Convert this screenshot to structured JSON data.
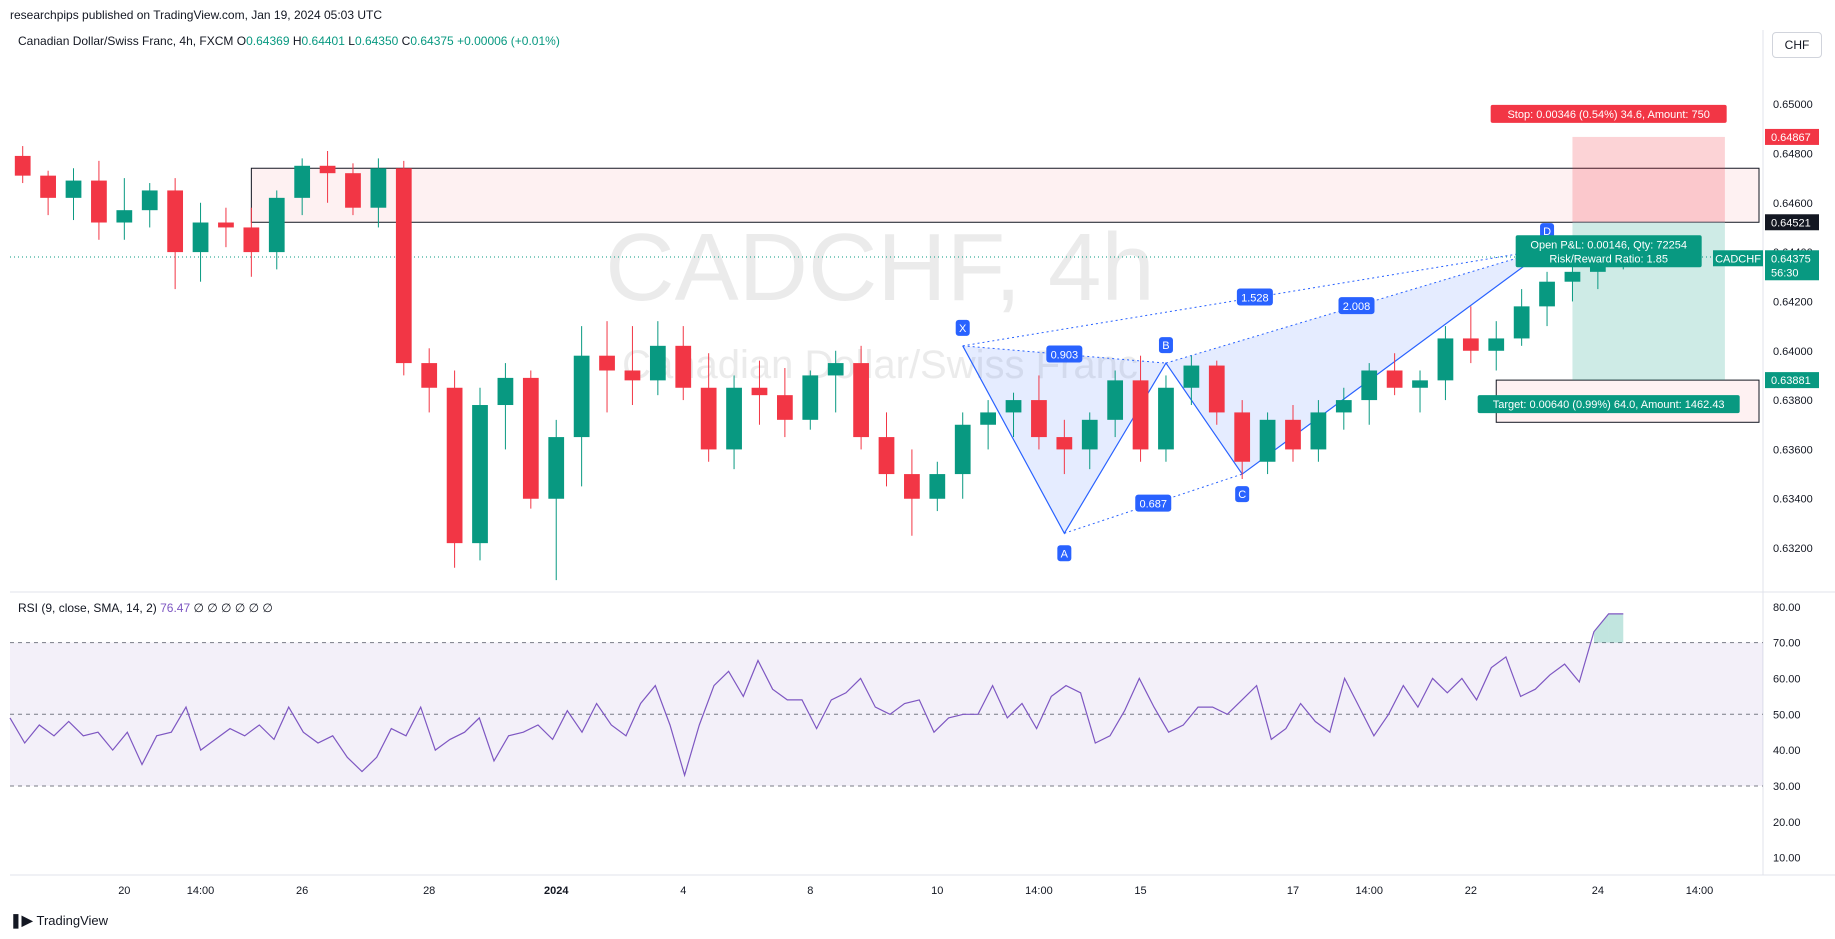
{
  "header": {
    "published": "researchpips published on TradingView.com, Jan 19, 2024 05:03 UTC",
    "symbol": "Canadian Dollar/Swiss Franc, 4h, FXCM",
    "ohlc": {
      "open_label": "O",
      "open": "0.64369",
      "high_label": "H",
      "high": "0.64401",
      "low_label": "L",
      "low": "0.64350",
      "close_label": "C",
      "close": "0.64375",
      "change": "+0.00006 (+0.01%)"
    },
    "currency_button": "CHF"
  },
  "watermark": {
    "main": "CADCHF, 4h",
    "sub": "Canadian Dollar/Swiss Franc"
  },
  "footer": {
    "logo_text": "TradingView"
  },
  "colors": {
    "up": "#089981",
    "down": "#f23645",
    "rsi": "#7e57c2",
    "pattern": "#2962ff"
  },
  "chart_data": {
    "type": "candlestick",
    "price_axis": {
      "ylim": [
        0.6303,
        0.6526
      ],
      "ticks": [
        "0.63200",
        "0.63400",
        "0.63600",
        "0.63800",
        "0.64000",
        "0.64200",
        "0.64400",
        "0.64600",
        "0.64800",
        "0.65000"
      ]
    },
    "price_labels": [
      {
        "name": "stop-level",
        "value": "0.64867",
        "color": "#f23645"
      },
      {
        "name": "zone-top",
        "value": "0.64521",
        "color": "#131722"
      },
      {
        "name": "current",
        "value": "0.64375",
        "symbol": "CADCHF",
        "countdown": "56:30",
        "color": "#089981"
      },
      {
        "name": "target-level",
        "value": "0.63881",
        "color": "#089981"
      }
    ],
    "x_axis": {
      "ticks": [
        {
          "label": "20",
          "i": 4
        },
        {
          "label": "14:00",
          "i": 7
        },
        {
          "label": "26",
          "i": 11
        },
        {
          "label": "28",
          "i": 16
        },
        {
          "label": "2024",
          "i": 21,
          "bold": true
        },
        {
          "label": "4",
          "i": 26
        },
        {
          "label": "8",
          "i": 31
        },
        {
          "label": "10",
          "i": 36
        },
        {
          "label": "14:00",
          "i": 40
        },
        {
          "label": "15",
          "i": 44
        },
        {
          "label": "17",
          "i": 50
        },
        {
          "label": "14:00",
          "i": 53
        },
        {
          "label": "22",
          "i": 57
        },
        {
          "label": "24",
          "i": 62
        },
        {
          "label": "14:00",
          "i": 66
        }
      ],
      "i_range": [
        -0.5,
        68.5
      ]
    },
    "candles": [
      [
        0.6479,
        0.6483,
        0.6468,
        0.6471
      ],
      [
        0.6471,
        0.6473,
        0.6455,
        0.6462
      ],
      [
        0.6462,
        0.6474,
        0.6453,
        0.6469
      ],
      [
        0.6469,
        0.6477,
        0.6445,
        0.6452
      ],
      [
        0.6452,
        0.647,
        0.6445,
        0.6457
      ],
      [
        0.6457,
        0.6468,
        0.645,
        0.6465
      ],
      [
        0.6465,
        0.647,
        0.6425,
        0.644
      ],
      [
        0.644,
        0.646,
        0.6428,
        0.6452
      ],
      [
        0.6452,
        0.6458,
        0.6442,
        0.645
      ],
      [
        0.645,
        0.6458,
        0.643,
        0.644
      ],
      [
        0.644,
        0.6465,
        0.6433,
        0.6462
      ],
      [
        0.6462,
        0.6478,
        0.6455,
        0.6475
      ],
      [
        0.6475,
        0.6481,
        0.646,
        0.6472
      ],
      [
        0.6472,
        0.6476,
        0.6455,
        0.6458
      ],
      [
        0.6458,
        0.6478,
        0.645,
        0.6474
      ],
      [
        0.6474,
        0.6477,
        0.639,
        0.6395
      ],
      [
        0.6395,
        0.6401,
        0.6375,
        0.6385
      ],
      [
        0.6385,
        0.6392,
        0.6312,
        0.6322
      ],
      [
        0.6322,
        0.6385,
        0.6315,
        0.6378
      ],
      [
        0.6378,
        0.6395,
        0.636,
        0.6389
      ],
      [
        0.6389,
        0.6392,
        0.6336,
        0.634
      ],
      [
        0.634,
        0.6372,
        0.6307,
        0.6365
      ],
      [
        0.6365,
        0.641,
        0.6345,
        0.6398
      ],
      [
        0.6398,
        0.6412,
        0.6375,
        0.6392
      ],
      [
        0.6392,
        0.641,
        0.6378,
        0.6388
      ],
      [
        0.6388,
        0.6412,
        0.6382,
        0.6402
      ],
      [
        0.6402,
        0.641,
        0.638,
        0.6385
      ],
      [
        0.6385,
        0.6399,
        0.6355,
        0.636
      ],
      [
        0.636,
        0.639,
        0.6352,
        0.6385
      ],
      [
        0.6385,
        0.6396,
        0.637,
        0.6382
      ],
      [
        0.6382,
        0.6393,
        0.6365,
        0.6372
      ],
      [
        0.6372,
        0.6392,
        0.6368,
        0.639
      ],
      [
        0.639,
        0.64,
        0.6375,
        0.6395
      ],
      [
        0.6395,
        0.6402,
        0.636,
        0.6365
      ],
      [
        0.6365,
        0.6375,
        0.6345,
        0.635
      ],
      [
        0.635,
        0.636,
        0.6325,
        0.634
      ],
      [
        0.634,
        0.6355,
        0.6335,
        0.635
      ],
      [
        0.635,
        0.6375,
        0.634,
        0.637
      ],
      [
        0.637,
        0.638,
        0.636,
        0.6375
      ],
      [
        0.6375,
        0.6383,
        0.6365,
        0.638
      ],
      [
        0.638,
        0.639,
        0.636,
        0.6365
      ],
      [
        0.6365,
        0.6372,
        0.635,
        0.636
      ],
      [
        0.636,
        0.6375,
        0.6352,
        0.6372
      ],
      [
        0.6372,
        0.6392,
        0.6365,
        0.6388
      ],
      [
        0.6388,
        0.6398,
        0.6355,
        0.636
      ],
      [
        0.636,
        0.639,
        0.6355,
        0.6385
      ],
      [
        0.6385,
        0.6398,
        0.6378,
        0.6394
      ],
      [
        0.6394,
        0.6396,
        0.637,
        0.6375
      ],
      [
        0.6375,
        0.638,
        0.6348,
        0.6355
      ],
      [
        0.6355,
        0.6375,
        0.635,
        0.6372
      ],
      [
        0.6372,
        0.6378,
        0.6355,
        0.636
      ],
      [
        0.636,
        0.638,
        0.6355,
        0.6375
      ],
      [
        0.6375,
        0.6385,
        0.6368,
        0.638
      ],
      [
        0.638,
        0.6395,
        0.637,
        0.6392
      ],
      [
        0.6392,
        0.6399,
        0.6382,
        0.6385
      ],
      [
        0.6385,
        0.6392,
        0.6375,
        0.6388
      ],
      [
        0.6388,
        0.641,
        0.638,
        0.6405
      ],
      [
        0.6405,
        0.6418,
        0.6395,
        0.64
      ],
      [
        0.64,
        0.6412,
        0.6392,
        0.6405
      ],
      [
        0.6405,
        0.6425,
        0.6402,
        0.6418
      ],
      [
        0.6418,
        0.6432,
        0.641,
        0.6428
      ],
      [
        0.6428,
        0.6438,
        0.642,
        0.6432
      ],
      [
        0.6432,
        0.644,
        0.6425,
        0.6437
      ],
      [
        0.6437,
        0.6441,
        0.6433,
        0.6438
      ]
    ],
    "harmonic_pattern": {
      "points": [
        {
          "label": "X",
          "i": 37,
          "price": 0.6402
        },
        {
          "label": "A",
          "i": 41,
          "price": 0.6326
        },
        {
          "label": "B",
          "i": 45,
          "price": 0.6395
        },
        {
          "label": "C",
          "i": 48,
          "price": 0.635
        },
        {
          "label": "D",
          "i": 60,
          "price": 0.64412
        }
      ],
      "ratios": [
        {
          "label": "0.903",
          "between": "X-B"
        },
        {
          "label": "0.687",
          "between": "A-C"
        },
        {
          "label": "2.008",
          "between": "B-D"
        },
        {
          "label": "1.528",
          "between": "X-D"
        }
      ]
    },
    "supply_zone": {
      "top": 0.6474,
      "bottom": 0.64521,
      "i_from": 9,
      "i_to": 68.5
    },
    "demand_zone": {
      "top": 0.63881,
      "bottom": 0.6371,
      "i_from": 58,
      "i_to": 68.5
    },
    "position": {
      "entry": 0.64521,
      "stop": 0.64867,
      "target": 0.63881,
      "i_from": 61,
      "i_to": 67,
      "stop_label": "Stop: 0.00346 (0.54%) 34.6, Amount: 750",
      "pnl_label": "Open P&L: 0.00146, Qty: 72254",
      "rr_label": "Risk/Reward Ratio: 1.85",
      "target_label": "Target: 0.00640 (0.99%) 64.0, Amount: 1462.43"
    },
    "rsi": {
      "legend_name": "RSI",
      "legend_params": "(9, close, SMA, 14, 2)",
      "legend_value": "76.47",
      "legend_extra": "∅ ∅ ∅ ∅ ∅ ∅",
      "ylim": [
        6,
        83
      ],
      "ticks": [
        "10.00",
        "20.00",
        "30.00",
        "40.00",
        "50.00",
        "60.00",
        "70.00",
        "80.00"
      ],
      "levels": [
        70,
        50,
        30
      ],
      "values": [
        49,
        42,
        47,
        44,
        48,
        44,
        45,
        40,
        45,
        36,
        44,
        45,
        52,
        40,
        43,
        46,
        44,
        47,
        43,
        52,
        45,
        42,
        44,
        38,
        34,
        38,
        46,
        44,
        52,
        40,
        43,
        45,
        49,
        37,
        44,
        45,
        47,
        43,
        51,
        45,
        53,
        47,
        44,
        53,
        58,
        47,
        33,
        47,
        58,
        62,
        55,
        65,
        57,
        54,
        54,
        46,
        54,
        56,
        60,
        52,
        50,
        53,
        54,
        45,
        49,
        50,
        50,
        58,
        49,
        53,
        46,
        55,
        58,
        56,
        42,
        44,
        51,
        60,
        52,
        45,
        47,
        52,
        52,
        50,
        54,
        58,
        43,
        46,
        53,
        48,
        45,
        60,
        52,
        44,
        50,
        58,
        52,
        60,
        56,
        60,
        54,
        63,
        66,
        55,
        57,
        61,
        64,
        59,
        73,
        78,
        78
      ]
    }
  }
}
